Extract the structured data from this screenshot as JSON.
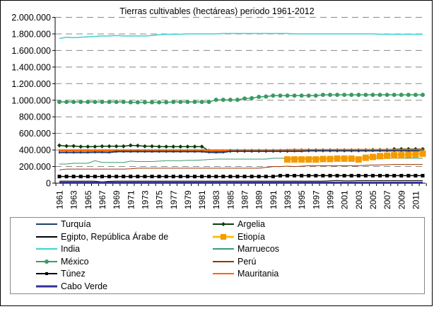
{
  "chart_data": {
    "type": "line",
    "title": "Tierras cultivables (hectáreas) periodo 1961-2012",
    "xlabel": "",
    "ylabel": "",
    "ylim": [
      0,
      2000000
    ],
    "yticks": [
      "0",
      "200.000",
      "400.000",
      "600.000",
      "800.000",
      "1.000.000",
      "1.200.000",
      "1.400.000",
      "1.600.000",
      "1.800.000",
      "2.000.000"
    ],
    "xticks": [
      "1961",
      "1963",
      "1965",
      "1967",
      "1969",
      "1971",
      "1973",
      "1975",
      "1977",
      "1979",
      "1981",
      "1983",
      "1985",
      "1987",
      "1989",
      "1991",
      "1993",
      "1995",
      "1997",
      "1999",
      "2001",
      "2003",
      "2005",
      "2007",
      "2009",
      "2011"
    ],
    "x_start": 1961,
    "x_end": 2012,
    "grid": "horizontal dashed",
    "legend_position": "bottom",
    "series": [
      {
        "name": "Turquía",
        "color": "#1f3d6e",
        "marker": "dash",
        "values": [
          370000,
          370000,
          370000,
          370000,
          370000,
          372000,
          372000,
          370000,
          380000,
          380000,
          380000,
          380000,
          380000,
          380000,
          380000,
          380000,
          380000,
          380000,
          380000,
          380000,
          380000,
          372000,
          370000,
          372000,
          385000,
          385000,
          385000,
          385000,
          385000,
          385000,
          385000,
          385000,
          385000,
          385000,
          385000,
          390000,
          390000,
          390000,
          390000,
          390000,
          390000,
          390000,
          390000,
          390000,
          390000,
          390000,
          390000,
          390000,
          390000,
          390000,
          390000,
          390000
        ]
      },
      {
        "name": "Argelia",
        "color": "#0b3d0b",
        "marker": "diamond",
        "values": [
          455000,
          448000,
          448000,
          440000,
          440000,
          440000,
          445000,
          445000,
          445000,
          445000,
          455000,
          452000,
          445000,
          445000,
          440000,
          440000,
          440000,
          440000,
          440000,
          440000,
          440000,
          390000,
          382000,
          385000,
          390000,
          390000,
          390000,
          390000,
          390000,
          390000,
          390000,
          390000,
          390000,
          395000,
          395000,
          395000,
          395000,
          395000,
          395000,
          395000,
          395000,
          395000,
          395000,
          398000,
          400000,
          400000,
          400000,
          410000,
          410000,
          410000,
          410000,
          410000
        ]
      },
      {
        "name": "Egipto, República Árabe de",
        "color": "#000000",
        "marker": "none",
        "values": [
          25000,
          25000,
          25000,
          25000,
          25000,
          23000,
          15000,
          22000,
          25000,
          25000,
          25000,
          25000,
          25000,
          25000,
          25000,
          25000,
          25000,
          25000,
          25000,
          25000,
          25000,
          25000,
          25000,
          25000,
          25000,
          25000,
          25000,
          25000,
          25000,
          25000,
          25000,
          25000,
          25000,
          25000,
          25000,
          25000,
          25000,
          25000,
          28000,
          32000,
          28000,
          27000,
          30000,
          30000,
          30000,
          30000,
          30000,
          30000,
          30000,
          30000,
          30000,
          30000
        ]
      },
      {
        "name": "Etiopía",
        "color": "#ffc000",
        "marker_color": "#f59a00",
        "marker": "square",
        "values": [
          null,
          null,
          null,
          null,
          null,
          null,
          null,
          null,
          null,
          null,
          null,
          null,
          null,
          null,
          null,
          null,
          null,
          null,
          null,
          null,
          null,
          null,
          null,
          null,
          null,
          null,
          null,
          null,
          null,
          null,
          null,
          null,
          290000,
          290000,
          290000,
          290000,
          290000,
          295000,
          295000,
          300000,
          300000,
          300000,
          290000,
          310000,
          320000,
          330000,
          335000,
          340000,
          340000,
          345000,
          350000,
          360000
        ]
      },
      {
        "name": "India",
        "color": "#40d0d0",
        "marker": "none",
        "values": [
          1745000,
          1760000,
          1755000,
          1760000,
          1765000,
          1770000,
          1775000,
          1775000,
          1780000,
          1775000,
          1775000,
          1775000,
          1775000,
          1780000,
          1790000,
          1795000,
          1795000,
          1795000,
          1800000,
          1800000,
          1800000,
          1800000,
          1800000,
          1805000,
          1805000,
          1805000,
          1805000,
          1805000,
          1805000,
          1805000,
          1805000,
          1805000,
          1805000,
          1800000,
          1800000,
          1800000,
          1800000,
          1800000,
          1800000,
          1800000,
          1800000,
          1800000,
          1800000,
          1800000,
          1800000,
          1795000,
          1795000,
          1795000,
          1795000,
          1795000,
          1795000,
          1795000
        ]
      },
      {
        "name": "Marruecos",
        "color": "#3a9a70",
        "marker": "none",
        "values": [
          230000,
          230000,
          240000,
          240000,
          240000,
          270000,
          250000,
          250000,
          250000,
          250000,
          265000,
          260000,
          260000,
          260000,
          265000,
          270000,
          270000,
          270000,
          275000,
          275000,
          280000,
          285000,
          290000,
          290000,
          290000,
          290000,
          290000,
          290000,
          290000,
          290000,
          300000,
          300000,
          300000,
          300000,
          300000,
          300000,
          300000,
          300000,
          300000,
          300000,
          300000,
          300000,
          300000,
          300000,
          300000,
          300000,
          300000,
          300000,
          300000,
          300000,
          300000,
          300000
        ]
      },
      {
        "name": "México",
        "color": "#3a9a64",
        "marker": "circle",
        "values": [
          980000,
          980000,
          980000,
          980000,
          980000,
          980000,
          980000,
          980000,
          980000,
          980000,
          975000,
          975000,
          975000,
          975000,
          975000,
          975000,
          980000,
          980000,
          980000,
          980000,
          980000,
          980000,
          1005000,
          1005000,
          1005000,
          1005000,
          1020000,
          1025000,
          1040000,
          1045000,
          1055000,
          1055000,
          1055000,
          1055000,
          1055000,
          1055000,
          1055000,
          1065000,
          1065000,
          1065000,
          1065000,
          1065000,
          1065000,
          1065000,
          1065000,
          1065000,
          1065000,
          1065000,
          1065000,
          1065000,
          1065000,
          1065000
        ]
      },
      {
        "name": "Perú",
        "color": "#993300",
        "marker": "none",
        "values": [
          160000,
          170000,
          170000,
          170000,
          170000,
          170000,
          170000,
          170000,
          170000,
          170000,
          172000,
          180000,
          180000,
          180000,
          180000,
          180000,
          180000,
          180000,
          180000,
          180000,
          180000,
          180000,
          180000,
          180000,
          180000,
          180000,
          180000,
          180000,
          180000,
          190000,
          200000,
          200000,
          205000,
          200000,
          205000,
          210000,
          210000,
          210000,
          210000,
          210000,
          210000,
          210000,
          210000,
          215000,
          218000,
          220000,
          222000,
          225000,
          225000,
          225000,
          225000,
          225000
        ]
      },
      {
        "name": "Túnez",
        "color": "#000000",
        "marker": "square-small",
        "values": [
          80000,
          80000,
          80000,
          80000,
          80000,
          80000,
          80000,
          80000,
          80000,
          80000,
          80000,
          80000,
          80000,
          80000,
          80000,
          80000,
          80000,
          80000,
          80000,
          80000,
          80000,
          80000,
          80000,
          80000,
          80000,
          80000,
          80000,
          80000,
          80000,
          80000,
          80000,
          90000,
          90000,
          90000,
          90000,
          90000,
          90000,
          90000,
          90000,
          90000,
          90000,
          90000,
          90000,
          90000,
          90000,
          90000,
          90000,
          90000,
          90000,
          90000,
          90000,
          90000
        ]
      },
      {
        "name": "Mauritania",
        "color": "#ff6600",
        "marker": "dash",
        "values": [
          395000,
          395000,
          395000,
          395000,
          395000,
          395000,
          395000,
          395000,
          395000,
          395000,
          395000,
          395000,
          395000,
          395000,
          395000,
          395000,
          395000,
          395000,
          395000,
          395000,
          395000,
          395000,
          395000,
          395000,
          395000,
          395000,
          395000,
          395000,
          395000,
          395000,
          395000,
          395000,
          398000,
          398000,
          398000,
          398000,
          398000,
          398000,
          398000,
          400000,
          400000,
          400000,
          400000,
          400000,
          400000,
          400000,
          400000,
          400000,
          400000,
          400000,
          400000,
          400000
        ]
      },
      {
        "name": "Cabo Verde",
        "color": "#333399",
        "marker": "none",
        "values": [
          5000,
          5000,
          5000,
          5000,
          5000,
          5000,
          5000,
          5000,
          5000,
          5000,
          5000,
          5000,
          5000,
          5000,
          5000,
          5000,
          5000,
          5000,
          5000,
          5000,
          5000,
          5000,
          5000,
          5000,
          5000,
          5000,
          5000,
          5000,
          5000,
          5000,
          5000,
          5000,
          5000,
          5000,
          5000,
          5000,
          5000,
          5000,
          5000,
          5000,
          5000,
          5000,
          5000,
          5000,
          5000,
          5000,
          5000,
          5000,
          5000,
          5000,
          5000,
          5000
        ]
      }
    ]
  }
}
